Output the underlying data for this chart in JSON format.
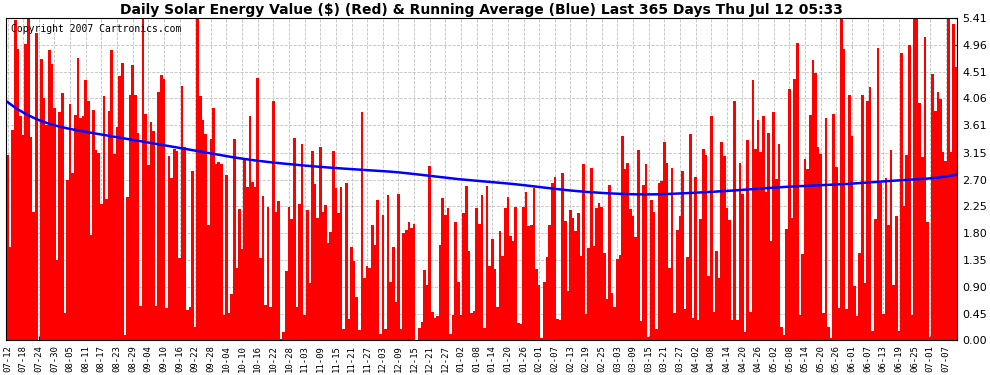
{
  "title": "Daily Solar Energy Value ($) (Red) & Running Average (Blue) Last 365 Days Thu Jul 12 05:33",
  "copyright": "Copyright 2007 Cartronics.com",
  "yticks": [
    0.0,
    0.45,
    0.9,
    1.35,
    1.8,
    2.25,
    2.7,
    3.15,
    3.61,
    4.06,
    4.51,
    4.96,
    5.41
  ],
  "ymax": 5.41,
  "ymin": 0.0,
  "bar_color": "#FF0000",
  "avg_color": "#0000FF",
  "bg_color": "#FFFFFF",
  "plot_bg_color": "#FFFFFF",
  "grid_color": "#BBBBBB",
  "title_fontsize": 10,
  "copyright_fontsize": 7,
  "n_days": 365,
  "x_tick_labels": [
    "07-12",
    "07-18",
    "07-24",
    "07-30",
    "08-05",
    "08-11",
    "08-17",
    "08-23",
    "08-29",
    "09-04",
    "09-10",
    "09-16",
    "09-22",
    "09-28",
    "10-04",
    "10-10",
    "10-16",
    "10-22",
    "10-28",
    "11-03",
    "11-09",
    "11-15",
    "11-21",
    "11-27",
    "12-03",
    "12-09",
    "12-15",
    "12-21",
    "12-27",
    "01-02",
    "01-08",
    "01-14",
    "01-20",
    "01-26",
    "02-01",
    "02-07",
    "02-13",
    "02-19",
    "02-25",
    "03-03",
    "03-09",
    "03-15",
    "03-21",
    "03-27",
    "04-02",
    "04-08",
    "04-14",
    "04-20",
    "04-26",
    "05-02",
    "05-08",
    "05-14",
    "05-20",
    "05-26",
    "06-01",
    "06-07",
    "06-13",
    "06-19",
    "06-25",
    "07-01",
    "07-07"
  ],
  "x_tick_positions": [
    0,
    6,
    12,
    18,
    24,
    30,
    36,
    42,
    48,
    54,
    60,
    66,
    72,
    78,
    84,
    90,
    96,
    102,
    108,
    114,
    120,
    126,
    132,
    138,
    144,
    150,
    156,
    162,
    168,
    174,
    180,
    186,
    192,
    198,
    204,
    210,
    216,
    222,
    228,
    234,
    240,
    246,
    252,
    258,
    264,
    270,
    276,
    282,
    288,
    294,
    300,
    306,
    312,
    318,
    324,
    330,
    336,
    342,
    348,
    354,
    360
  ]
}
